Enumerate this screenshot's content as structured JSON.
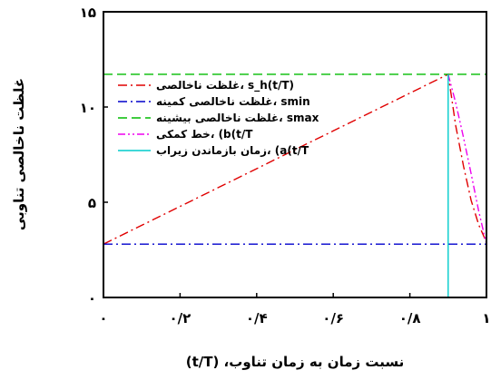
{
  "chart_data": {
    "type": "line",
    "xlabel": "نسبت زمان به زمان تناوب، (t/T)",
    "ylabel": "غلظت ناخالصی تناوبی",
    "xlim": [
      0,
      1
    ],
    "ylim": [
      0,
      15
    ],
    "x_ticks": [
      {
        "value": 0,
        "label": "۰"
      },
      {
        "value": 0.2,
        "label": "۰/۲"
      },
      {
        "value": 0.4,
        "label": "۰/۴"
      },
      {
        "value": 0.6,
        "label": "۰/۶"
      },
      {
        "value": 0.8,
        "label": "۰/۸"
      },
      {
        "value": 1,
        "label": "۱"
      }
    ],
    "y_ticks": [
      {
        "value": 0,
        "label": "۰"
      },
      {
        "value": 5,
        "label": "۵"
      },
      {
        "value": 10,
        "label": "۱۰"
      },
      {
        "value": 15,
        "label": "۱۵"
      }
    ],
    "legend_position": "top-right",
    "series": [
      {
        "name": "غلظت ناخالصی، (sₕ(t/T",
        "legend_label": "غلظت ناخالصی، s_h(t/T)",
        "color": "#e00000",
        "dash": "dashdot",
        "x": [
          0,
          0.1,
          0.2,
          0.3,
          0.4,
          0.5,
          0.6,
          0.7,
          0.8,
          0.9,
          0.92,
          0.94,
          0.96,
          0.98,
          1.0
        ],
        "y": [
          2.8,
          3.79,
          4.78,
          5.77,
          6.76,
          7.76,
          8.75,
          9.74,
          10.73,
          11.72,
          9.0,
          6.9,
          5.1,
          3.8,
          2.9
        ]
      },
      {
        "name": "غلظت ناخالصی کمینه، smin",
        "color": "#0000cc",
        "dash": "dashdot",
        "x": [
          0,
          1
        ],
        "y": [
          2.8,
          2.8
        ]
      },
      {
        "name": "غلظت ناخالصی بیشینه، smax",
        "color": "#00bb00",
        "dash": "dash",
        "x": [
          0,
          1
        ],
        "y": [
          11.72,
          11.72
        ]
      },
      {
        "name": "خط کمکی، (b(t/T",
        "color": "#ee00ee",
        "dash": "dashdotdot",
        "x": [
          0.9,
          0.92,
          0.94,
          0.96,
          0.98,
          1.0
        ],
        "y": [
          11.72,
          10.2,
          8.4,
          6.5,
          4.5,
          2.8
        ]
      },
      {
        "name": "زمان بازماندن زیراب، (a(t/T",
        "color": "#00cccc",
        "dash": "solid",
        "x": [
          0.9,
          0.9
        ],
        "y": [
          0,
          11.72
        ]
      }
    ]
  }
}
